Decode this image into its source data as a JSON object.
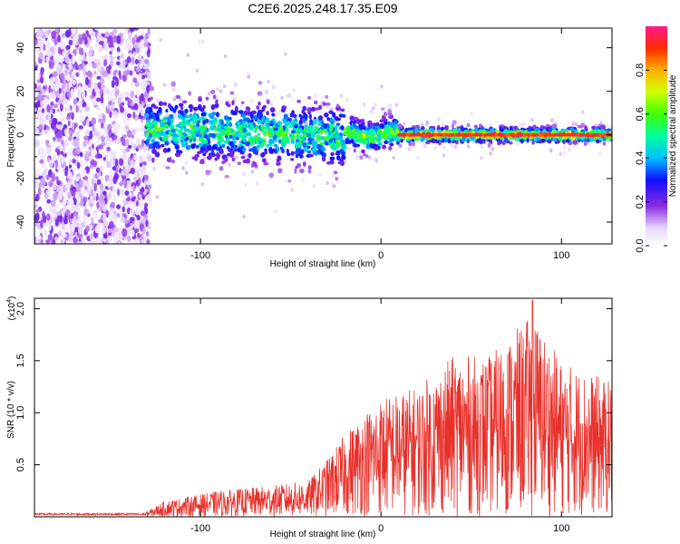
{
  "title": "C2E6.2025.248.17.35.E09",
  "chart_data": [
    {
      "type": "heatmap",
      "name": "spectrogram",
      "xlabel": "Height of straight line (km)",
      "ylabel": "Frequency (Hz)",
      "xlim": [
        -192,
        128
      ],
      "ylim": [
        -50,
        49
      ],
      "xticks": [
        -100,
        0,
        100
      ],
      "yticks": [
        -40,
        -20,
        0,
        20,
        40
      ],
      "description_regions": [
        {
          "x_range": [
            -192,
            -128
          ],
          "freq_spread": [
            -50,
            49
          ],
          "amplitude": "low-mid, broadband noise"
        },
        {
          "x_range": [
            -128,
            -20
          ],
          "freq_center": 2,
          "freq_halfwidth": 8,
          "amplitude": "mid"
        },
        {
          "x_range": [
            -20,
            10
          ],
          "freq_center": 0,
          "freq_halfwidth": 4,
          "amplitude": "mid-high"
        },
        {
          "x_range": [
            10,
            128
          ],
          "freq_center": 0,
          "freq_halfwidth": 2,
          "amplitude": "high (peak)"
        }
      ],
      "colorbar": {
        "label": "Normalized spectral amplitude",
        "range": [
          0,
          1
        ],
        "ticks": [
          "0.0",
          "0.2",
          "0.4",
          "0.6",
          "0.8"
        ]
      }
    },
    {
      "type": "line",
      "name": "snr",
      "xlabel": "Height of straight line (km)",
      "ylabel": "SNR (10 * v/v)",
      "multiplier_label": "(x10",
      "multiplier_exponent": "4",
      "color": "#e8302a",
      "xlim": [
        -192,
        128
      ],
      "ylim": [
        0,
        2.1
      ],
      "xticks": [
        -100,
        0,
        100
      ],
      "yticks": [
        "0.5",
        "1.0",
        "1.5",
        "2.0"
      ],
      "envelope_points": [
        {
          "x": -192,
          "y": 0.03
        },
        {
          "x": -150,
          "y": 0.03
        },
        {
          "x": -130,
          "y": 0.05
        },
        {
          "x": -120,
          "y": 0.15
        },
        {
          "x": -90,
          "y": 0.25
        },
        {
          "x": -60,
          "y": 0.3
        },
        {
          "x": -40,
          "y": 0.35
        },
        {
          "x": -30,
          "y": 0.55
        },
        {
          "x": -20,
          "y": 0.8
        },
        {
          "x": -10,
          "y": 1.0
        },
        {
          "x": 0,
          "y": 1.15
        },
        {
          "x": 20,
          "y": 1.25
        },
        {
          "x": 40,
          "y": 1.55
        },
        {
          "x": 60,
          "y": 1.55
        },
        {
          "x": 84,
          "y": 1.95
        },
        {
          "x": 100,
          "y": 1.5
        },
        {
          "x": 128,
          "y": 1.3
        }
      ],
      "peak": {
        "x": 84,
        "y": 2.08
      }
    }
  ],
  "colors": {
    "snr_line": "#e8302a",
    "frame": "#000000"
  }
}
